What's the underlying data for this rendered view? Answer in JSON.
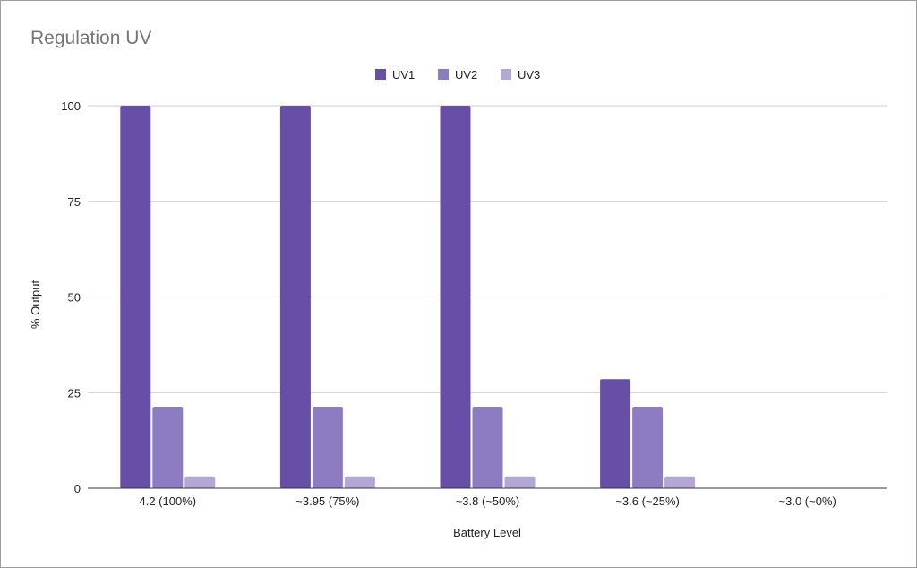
{
  "chart_data": {
    "type": "bar",
    "title": "Regulation UV",
    "xlabel": "Battery Level",
    "ylabel": "% Output",
    "categories": [
      "4.2 (100%)",
      "~3.95 (75%)",
      "~3.8 (~50%)",
      "~3.6 (~25%)",
      "~3.0 (~0%)"
    ],
    "series": [
      {
        "name": "UV1",
        "color": "#674ea7",
        "values": [
          100,
          100,
          100,
          28.5,
          0
        ]
      },
      {
        "name": "UV2",
        "color": "#8e7cc3",
        "values": [
          21.3,
          21.3,
          21.3,
          21.3,
          0
        ]
      },
      {
        "name": "UV3",
        "color": "#b4a7d6",
        "values": [
          3.1,
          3.1,
          3.1,
          3.1,
          0
        ]
      }
    ],
    "y_ticks": [
      "0",
      "25",
      "50",
      "75",
      "100"
    ],
    "ylim": [
      0,
      100
    ],
    "grid": true,
    "legend_position": "top"
  }
}
